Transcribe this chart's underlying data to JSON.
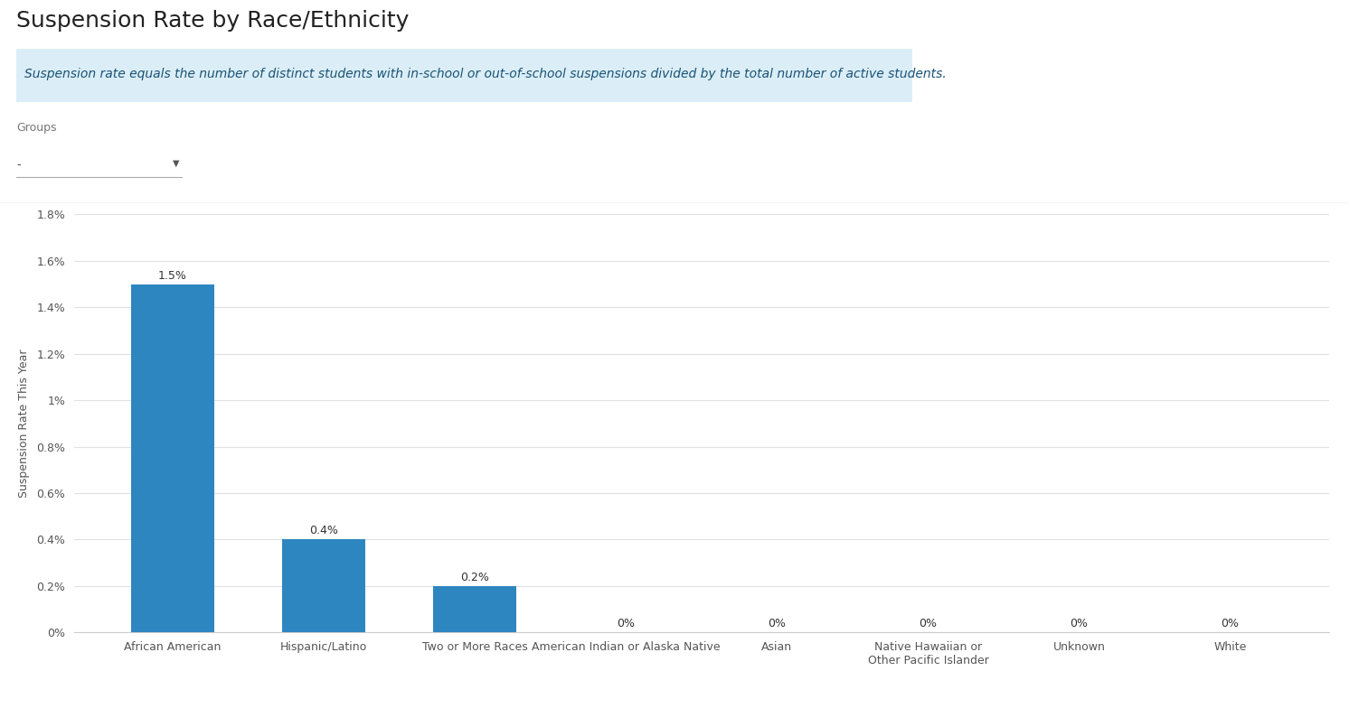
{
  "title": "Suspension Rate by Race/Ethnicity",
  "subtitle": "Suspension rate equals the number of distinct students with in-school or out-of-school suspensions divided by the total number of active students.",
  "ylabel": "Suspension Rate This Year",
  "categories": [
    "African American",
    "Hispanic/Latino",
    "Two or More Races",
    "American Indian or Alaska Native",
    "Asian",
    "Native Hawaiian or Other Pacific Islander",
    "Unknown",
    "White"
  ],
  "values": [
    1.5,
    0.4,
    0.2,
    0.0,
    0.0,
    0.0,
    0.0,
    0.0
  ],
  "labels": [
    "1.5%",
    "0.4%",
    "0.2%",
    "0%",
    "0%",
    "0%",
    "0%",
    "0%"
  ],
  "bar_color": "#2E86C1",
  "ylim": [
    0,
    1.8
  ],
  "yticks": [
    0.0,
    0.2,
    0.4,
    0.6,
    0.8,
    1.0,
    1.2,
    1.4,
    1.6,
    1.8
  ],
  "ytick_labels": [
    "0%",
    "0.2%",
    "0.4%",
    "0.6%",
    "0.8%",
    "1%",
    "1.2%",
    "1.4%",
    "1.6%",
    "1.8%"
  ],
  "background_color": "#ffffff",
  "grid_color": "#e0e0e0",
  "subtitle_bg_color": "#dbeef7",
  "subtitle_text_color": "#1a5276",
  "groups_label": "Groups",
  "dropdown_label": "-",
  "title_fontsize": 18,
  "subtitle_fontsize": 10,
  "axis_fontsize": 9,
  "label_fontsize": 9,
  "ylabel_fontsize": 9
}
